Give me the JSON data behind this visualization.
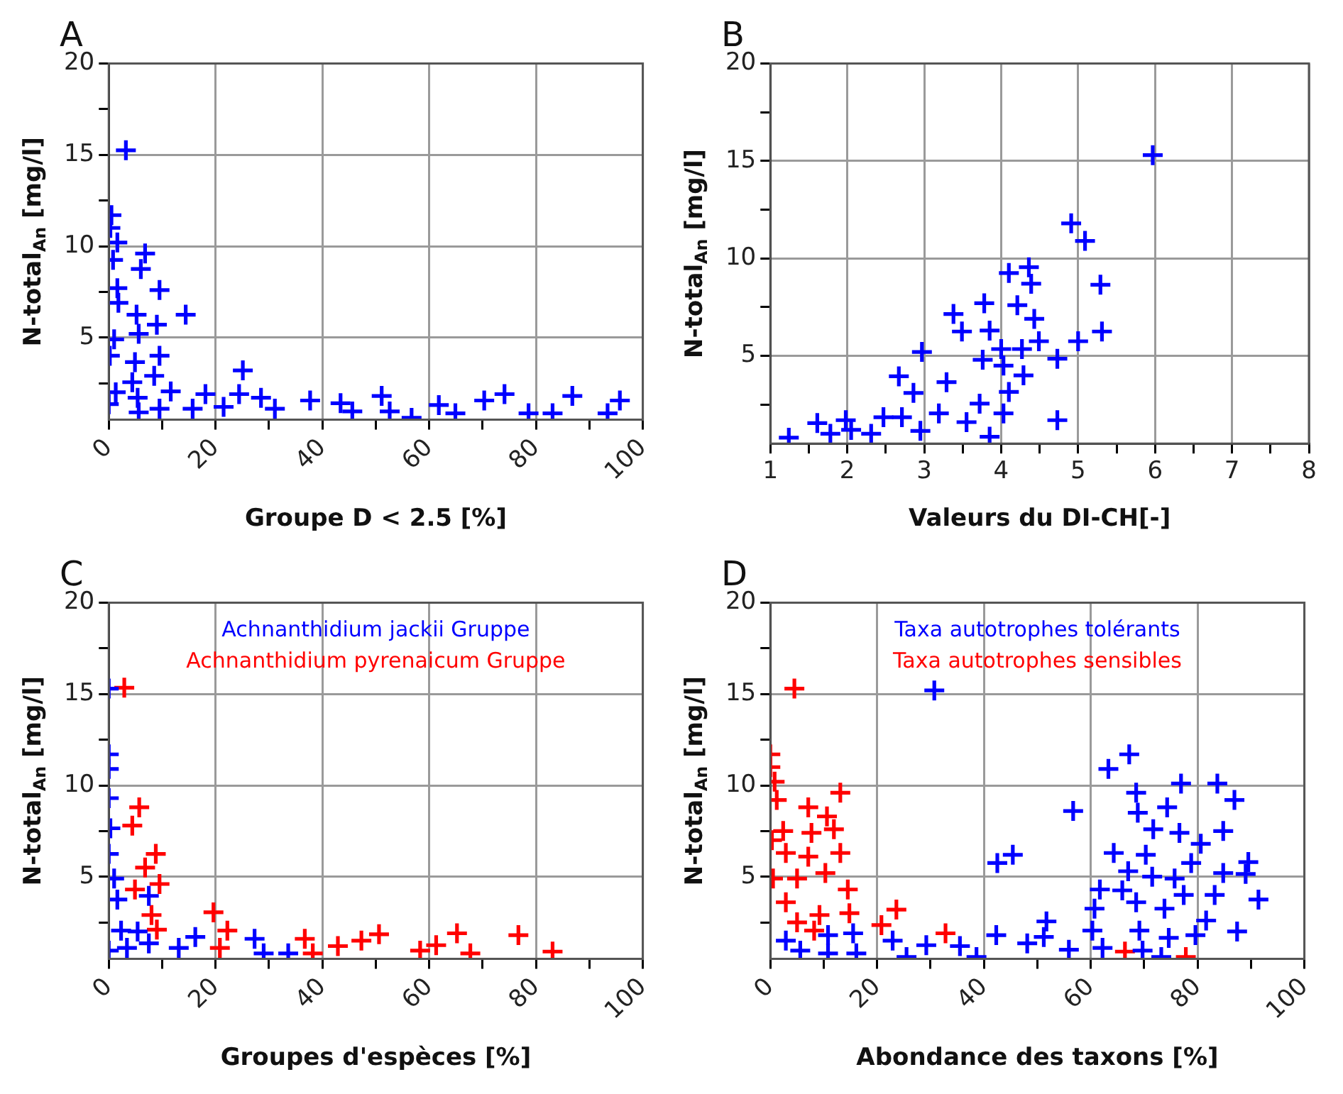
{
  "chart_data": [
    {
      "type": "scatter",
      "title": "A",
      "xlabel": "Groupe D < 2.5 [%]",
      "ylabel": "N-total$_{An}$ [mg/l]",
      "xlim": [
        0,
        100
      ],
      "ylim": [
        0.5,
        20
      ],
      "xticks": [
        0,
        {
          "value": 10,
          "label": null
        },
        20,
        {
          "value": 30,
          "label": null
        },
        40,
        {
          "value": 50,
          "label": null
        },
        60,
        {
          "value": 70,
          "label": null
        },
        80,
        {
          "value": 90,
          "label": null
        },
        100
      ],
      "yticks": [
        {
          "value": 2.5,
          "label": null
        },
        5,
        {
          "value": 7.5,
          "label": null
        },
        10,
        {
          "value": 12.5,
          "label": null
        },
        15,
        {
          "value": 17.5,
          "label": null
        },
        20
      ],
      "grid": true,
      "marker": "cross",
      "series": [
        {
          "color": "#0000ff",
          "x": [
            3.2,
            0.5,
            0.3,
            1.6,
            6.8,
            0.8,
            6.0,
            9.5,
            1.6,
            1.8,
            14.4,
            5.2,
            9.0,
            1.0,
            5.6,
            0.2,
            9.5,
            4.9,
            8.5,
            25.1,
            4.4,
            1.3,
            11.6,
            5.4,
            0,
            5.6,
            9.5,
            15.7,
            18.1,
            21.5,
            24.4,
            28.5,
            31.1,
            37.7,
            43.4,
            45.6,
            51.1,
            52.6,
            56.7,
            61.8,
            64.9,
            70.3,
            74.1,
            78.6,
            83.1,
            86.8,
            93.4,
            95.7
          ],
          "values": [
            15.25,
            11.7,
            11.0,
            10.2,
            9.6,
            9.25,
            8.75,
            7.6,
            7.7,
            6.9,
            6.25,
            6.25,
            5.7,
            4.9,
            5.2,
            4.0,
            4.0,
            3.65,
            2.9,
            3.2,
            2.55,
            2.0,
            2.05,
            1.7,
            1.35,
            0.9,
            1.1,
            1.1,
            1.9,
            1.2,
            1.9,
            1.7,
            1.1,
            1.55,
            1.4,
            0.95,
            1.8,
            0.95,
            0.6,
            1.3,
            0.85,
            1.55,
            1.9,
            0.85,
            0.85,
            1.8,
            0.85,
            1.55
          ]
        }
      ]
    },
    {
      "type": "scatter",
      "title": "B",
      "xlabel": "Valeurs du DI-CH[-]",
      "ylabel": "N-total$_{An}$ [mg/l]",
      "xlim": [
        1,
        8
      ],
      "ylim": [
        0.5,
        20
      ],
      "xticks": [
        1,
        {
          "value": 1.5,
          "label": null
        },
        2,
        {
          "value": 2.5,
          "label": null
        },
        3,
        {
          "value": 3.5,
          "label": null
        },
        4,
        {
          "value": 4.5,
          "label": null
        },
        5,
        {
          "value": 5.5,
          "label": null
        },
        6,
        {
          "value": 6.5,
          "label": null
        },
        7,
        {
          "value": 7.5,
          "label": null
        },
        8
      ],
      "yticks": [
        {
          "value": 2.5,
          "label": null
        },
        5,
        {
          "value": 7.5,
          "label": null
        },
        10,
        {
          "value": 12.5,
          "label": null
        },
        15,
        {
          "value": 17.5,
          "label": null
        },
        20
      ],
      "grid": true,
      "marker": "cross",
      "series": [
        {
          "color": "#0000ff",
          "x": [
            5.97,
            4.91,
            5.09,
            5.29,
            5.31,
            5.0,
            4.73,
            4.73,
            4.36,
            4.1,
            4.39,
            4.21,
            4.43,
            4.49,
            4.27,
            4.0,
            4.03,
            4.29,
            4.1,
            4.03,
            3.85,
            3.78,
            3.85,
            3.76,
            3.72,
            3.55,
            3.38,
            3.49,
            3.29,
            3.19,
            2.97,
            2.67,
            2.86,
            2.71,
            2.95,
            2.47,
            2.31,
            2.05,
            1.98,
            1.78,
            1.61,
            1.24
          ],
          "values": [
            15.3,
            11.8,
            10.9,
            8.65,
            6.25,
            5.75,
            4.85,
            1.7,
            9.55,
            9.25,
            8.7,
            7.6,
            6.9,
            5.75,
            5.35,
            5.35,
            4.5,
            4.0,
            3.15,
            2.05,
            0.85,
            7.7,
            6.3,
            4.8,
            2.55,
            1.6,
            7.15,
            6.25,
            3.65,
            2.05,
            5.2,
            3.95,
            3.1,
            1.85,
            1.15,
            1.85,
            1.0,
            1.2,
            1.7,
            1.0,
            1.55,
            0.8
          ]
        }
      ]
    },
    {
      "type": "scatter",
      "title": "C",
      "xlabel": "Groupes d'espèces [%]",
      "ylabel": "N-total$_{An}$ [mg/l]",
      "xlim": [
        0,
        100
      ],
      "ylim": [
        0.5,
        20
      ],
      "xticks": [
        0,
        {
          "value": 10,
          "label": null
        },
        20,
        {
          "value": 30,
          "label": null
        },
        40,
        {
          "value": 50,
          "label": null
        },
        60,
        {
          "value": 70,
          "label": null
        },
        80,
        {
          "value": 90,
          "label": null
        },
        100
      ],
      "yticks": [
        {
          "value": 2.5,
          "label": null
        },
        5,
        {
          "value": 7.5,
          "label": null
        },
        10,
        {
          "value": 12.5,
          "label": null
        },
        15,
        {
          "value": 17.5,
          "label": null
        },
        20
      ],
      "grid": true,
      "marker": "cross",
      "legend": "top",
      "series": [
        {
          "name": "Achnanthidium jackii Gruppe",
          "color": "#0000ff",
          "x": [
            0,
            0,
            0,
            0,
            0.3,
            0,
            1.0,
            1.6,
            7.5,
            2.3,
            5.4,
            3.4,
            7.5,
            13.1,
            16.2,
            27.3,
            29.0,
            33.6,
            0
          ],
          "values": [
            15.3,
            11.7,
            10.9,
            9.3,
            7.65,
            6.25,
            4.9,
            3.75,
            3.95,
            2.05,
            2.0,
            1.1,
            1.35,
            1.1,
            1.7,
            1.6,
            0.8,
            0.8,
            0.95
          ]
        },
        {
          "name": "Achnanthidium pyrenaicum Gruppe",
          "color": "#ff0000",
          "x": [
            2.9,
            5.7,
            4.4,
            8.8,
            6.8,
            4.9,
            9.5,
            8.0,
            19.6,
            9.0,
            22.2,
            20.8,
            36.7,
            38.2,
            42.9,
            47.3,
            50.6,
            58.3,
            61.3,
            65.2,
            67.7,
            76.7,
            83.1
          ],
          "values": [
            15.35,
            8.8,
            7.8,
            6.25,
            5.5,
            4.3,
            4.6,
            2.9,
            3.05,
            2.1,
            2.05,
            1.1,
            1.6,
            0.8,
            1.2,
            1.5,
            1.85,
            0.95,
            1.25,
            1.9,
            0.8,
            1.8,
            0.9
          ]
        }
      ]
    },
    {
      "type": "scatter",
      "title": "D",
      "xlabel": "Abondance des taxons [%]",
      "ylabel": "N-total$_{An}$ [mg/l]",
      "xlim": [
        0,
        100
      ],
      "ylim": [
        0.5,
        20
      ],
      "xticks": [
        0,
        {
          "value": 10,
          "label": null
        },
        20,
        {
          "value": 30,
          "label": null
        },
        40,
        {
          "value": 50,
          "label": null
        },
        60,
        {
          "value": 70,
          "label": null
        },
        80,
        {
          "value": 90,
          "label": null
        },
        100
      ],
      "yticks": [
        {
          "value": 2.5,
          "label": null
        },
        5,
        {
          "value": 7.5,
          "label": null
        },
        10,
        {
          "value": 12.5,
          "label": null
        },
        15,
        {
          "value": 17.5,
          "label": null
        },
        20
      ],
      "grid": true,
      "marker": "cross",
      "legend": "top",
      "series": [
        {
          "name": "Taxa autotrophes tolérants",
          "color": "#0000ff",
          "x": [
            30.7,
            67.2,
            63.3,
            68.5,
            76.9,
            83.7,
            86.9,
            74.3,
            68.8,
            56.7,
            71.7,
            76.6,
            84.8,
            80.6,
            42.5,
            45.4,
            64.3,
            70.3,
            67.0,
            71.5,
            75.7,
            78.8,
            84.8,
            89.0,
            89.5,
            61.7,
            65.9,
            68.5,
            73.8,
            77.4,
            83.2,
            91.4,
            60.7,
            81.6,
            87.4,
            69.1,
            74.6,
            79.6,
            60.3,
            51.7,
            55.9,
            62.2,
            69.7,
            51.2,
            48.1,
            42.3,
            35.5,
            29.2,
            22.9,
            15.5,
            10.8,
            2.9,
            5.6,
            10.8,
            16.1,
            25.5,
            38.6,
            73.2
          ],
          "values": [
            15.2,
            11.7,
            10.9,
            9.6,
            10.1,
            10.1,
            9.2,
            8.8,
            8.5,
            8.6,
            7.6,
            7.4,
            7.5,
            6.8,
            5.75,
            6.2,
            6.3,
            6.2,
            5.3,
            5.0,
            4.9,
            5.75,
            5.2,
            5.15,
            5.8,
            4.3,
            4.25,
            3.6,
            3.25,
            4.0,
            4.0,
            3.75,
            3.25,
            2.6,
            2.0,
            2.05,
            1.65,
            1.8,
            2.05,
            2.55,
            1.0,
            1.1,
            0.95,
            1.7,
            1.35,
            1.8,
            1.2,
            1.25,
            1.5,
            1.9,
            1.8,
            1.5,
            0.95,
            0.8,
            0.8,
            0.6,
            0.6,
            0.6
          ]
        },
        {
          "name": "Taxa autotrophes sensibles",
          "color": "#ff0000",
          "x": [
            4.5,
            0,
            0,
            0.8,
            13.1,
            1.2,
            7.1,
            10.6,
            2.4,
            7.7,
            11.9,
            0.3,
            2.9,
            7.1,
            13.1,
            10.3,
            0.5,
            5.0,
            14.5,
            2.9,
            9.2,
            14.8,
            23.6,
            5.0,
            8.2,
            20.8,
            32.8,
            66.4,
            77.8
          ],
          "values": [
            15.3,
            11.7,
            11.0,
            10.2,
            9.6,
            9.2,
            8.8,
            8.3,
            7.5,
            7.4,
            7.6,
            7.0,
            6.3,
            6.1,
            6.3,
            5.2,
            4.9,
            4.9,
            4.3,
            3.6,
            2.9,
            3.0,
            3.2,
            2.5,
            2.05,
            2.35,
            1.9,
            0.9,
            0.6
          ]
        }
      ]
    }
  ]
}
